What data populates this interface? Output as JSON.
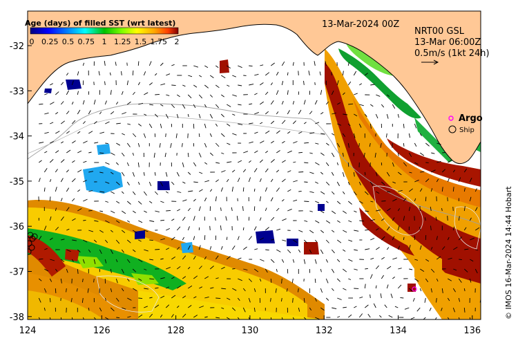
{
  "map": {
    "title": "13-Mar-2024 00Z",
    "colorbar_title": "Age (days) of filled SST (wrt latest)",
    "colorbar_ticks": [
      "0",
      "0.25",
      "0.5",
      "0.75",
      "1",
      "1.25",
      "1.5",
      "1.75",
      "2"
    ],
    "colorbar_colors": [
      "#00007f",
      "#0000ff",
      "#0080ff",
      "#00ffff",
      "#00c000",
      "#80ff00",
      "#ffff00",
      "#ffa500",
      "#ff4000",
      "#7f0000"
    ],
    "current_info": {
      "line1": "NRT00 GSL",
      "line2": "13-Mar 06:00Z",
      "line3": "0.5m/s (1kt 24h)"
    },
    "legend": {
      "argo": "Argo",
      "ship": "Ship"
    },
    "credit": "© IMOS 16-Mar-2024 14:44 Hobart",
    "x_ticks": [
      "124",
      "126",
      "128",
      "130",
      "132",
      "134",
      "136"
    ],
    "y_ticks": [
      "-32",
      "-33",
      "-34",
      "-35",
      "-36",
      "-37",
      "-38"
    ],
    "colors": {
      "land": "#ffc896",
      "sea_empty": "#ffffff",
      "orange": "#f0a000",
      "dark_orange": "#e07800",
      "dark_red": "#a01000",
      "yellow": "#f8e000",
      "green": "#20c020",
      "navy": "#000090",
      "cyan": "#20b0f0"
    }
  }
}
